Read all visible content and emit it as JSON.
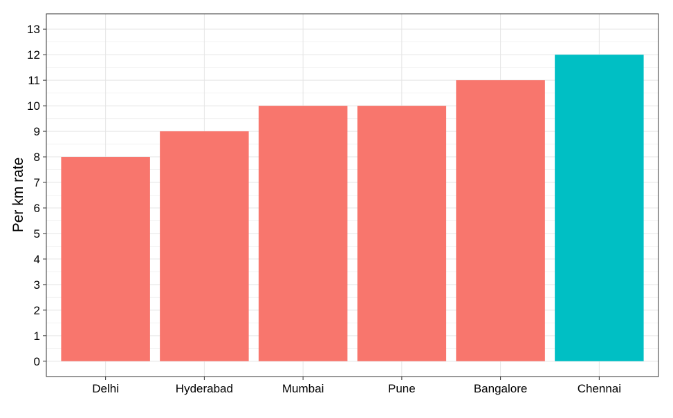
{
  "chart_data": {
    "type": "bar",
    "categories": [
      "Delhi",
      "Hyderabad",
      "Mumbai",
      "Pune",
      "Bangalore",
      "Chennai"
    ],
    "values": [
      8,
      9,
      10,
      10,
      11,
      12
    ],
    "highlight": [
      false,
      false,
      false,
      false,
      false,
      true
    ],
    "colors": {
      "default": "#F8766D",
      "highlight": "#00BFC4"
    },
    "title": "",
    "xlabel": "",
    "ylabel": "Per km rate",
    "ylim": [
      -0.6,
      13.6
    ],
    "yticks": [
      0,
      1,
      2,
      3,
      4,
      5,
      6,
      7,
      8,
      9,
      10,
      11,
      12,
      13
    ],
    "grid": true,
    "legend": "none"
  }
}
